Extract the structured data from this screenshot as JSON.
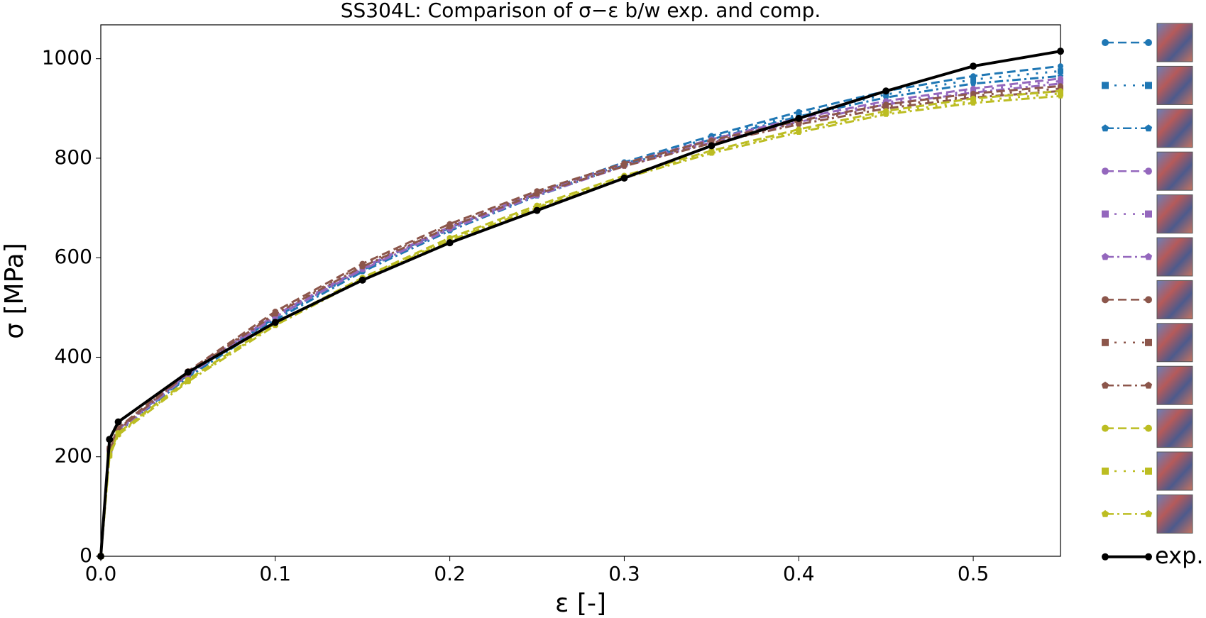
{
  "chart_data": {
    "type": "line",
    "title": "SS304L: Comparison of σ−ε b/w exp. and comp.",
    "x_label": "ε [-]",
    "y_label": "σ [MPa]",
    "x": [
      0,
      0.005,
      0.01,
      0.05,
      0.1,
      0.15,
      0.2,
      0.25,
      0.3,
      0.35,
      0.4,
      0.45,
      0.5,
      0.55
    ],
    "xlim": [
      0,
      0.55
    ],
    "ylim": [
      0,
      1068
    ],
    "xticks": [
      {
        "value": 0,
        "label": "0.0"
      },
      0.1,
      0.2,
      0.3,
      0.4,
      0.5
    ],
    "yticks": [
      0,
      200,
      400,
      600,
      800,
      1000
    ],
    "grid": false,
    "legend": "outside right",
    "series": [
      {
        "color": "#1f77b4",
        "marker": "circle",
        "linestyle": "dashed",
        "values": [
          0,
          215,
          255,
          365,
          480,
          578,
          660,
          730,
          792,
          845,
          893,
          935,
          965,
          985
        ]
      },
      {
        "color": "#1f77b4",
        "marker": "square",
        "linestyle": "dotted",
        "values": [
          0,
          212,
          252,
          362,
          478,
          575,
          657,
          727,
          789,
          842,
          888,
          928,
          958,
          975
        ]
      },
      {
        "color": "#1f77b4",
        "marker": "pentagon",
        "linestyle": "dashdot",
        "values": [
          0,
          210,
          250,
          360,
          475,
          572,
          654,
          724,
          786,
          838,
          884,
          922,
          950,
          965
        ]
      },
      {
        "color": "#9467bd",
        "marker": "circle",
        "linestyle": "dashed",
        "values": [
          0,
          215,
          255,
          368,
          485,
          580,
          662,
          730,
          790,
          838,
          880,
          915,
          940,
          960
        ]
      },
      {
        "color": "#9467bd",
        "marker": "square",
        "linestyle": "dotted",
        "values": [
          0,
          213,
          253,
          366,
          483,
          578,
          660,
          728,
          787,
          835,
          877,
          912,
          936,
          955
        ]
      },
      {
        "color": "#9467bd",
        "marker": "pentagon",
        "linestyle": "dashdot",
        "values": [
          0,
          211,
          251,
          364,
          481,
          576,
          657,
          725,
          784,
          832,
          873,
          908,
          932,
          950
        ]
      },
      {
        "color": "#8c564b",
        "marker": "circle",
        "linestyle": "dashed",
        "values": [
          0,
          218,
          258,
          372,
          492,
          588,
          668,
          734,
          790,
          836,
          875,
          908,
          930,
          945
        ]
      },
      {
        "color": "#8c564b",
        "marker": "square",
        "linestyle": "dotted",
        "values": [
          0,
          216,
          256,
          370,
          489,
          585,
          665,
          731,
          787,
          833,
          871,
          904,
          926,
          940
        ]
      },
      {
        "color": "#8c564b",
        "marker": "pentagon",
        "linestyle": "dashdot",
        "values": [
          0,
          214,
          254,
          368,
          487,
          582,
          662,
          728,
          784,
          830,
          868,
          900,
          922,
          935
        ]
      },
      {
        "color": "#bcbd22",
        "marker": "circle",
        "linestyle": "dashed",
        "values": [
          0,
          205,
          248,
          355,
          468,
          560,
          640,
          705,
          765,
          815,
          858,
          895,
          920,
          935
        ]
      },
      {
        "color": "#bcbd22",
        "marker": "square",
        "linestyle": "dotted",
        "values": [
          0,
          203,
          246,
          353,
          466,
          558,
          637,
          702,
          762,
          812,
          855,
          891,
          915,
          930
        ]
      },
      {
        "color": "#bcbd22",
        "marker": "pentagon",
        "linestyle": "dashdot",
        "values": [
          0,
          201,
          244,
          351,
          464,
          556,
          635,
          700,
          760,
          810,
          852,
          888,
          911,
          925
        ]
      },
      {
        "name": "exp.",
        "color": "#000000",
        "marker": "circle",
        "linestyle": "solid",
        "values": [
          0,
          235,
          270,
          370,
          470,
          555,
          630,
          695,
          760,
          825,
          880,
          935,
          985,
          1015
        ]
      }
    ]
  }
}
